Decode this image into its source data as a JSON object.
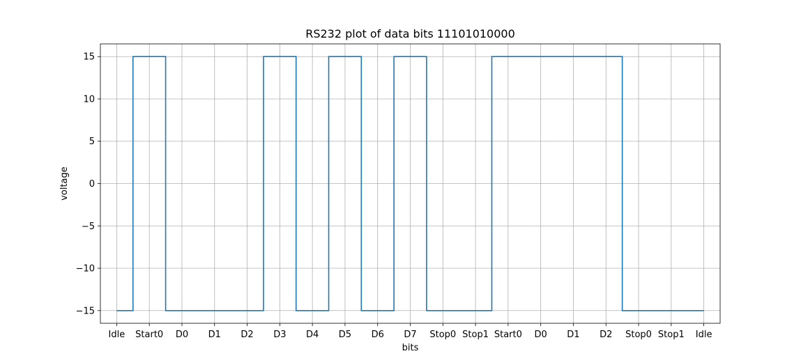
{
  "chart_data": {
    "type": "line",
    "title": "RS232 plot of data bits 11101010000",
    "xlabel": "bits",
    "ylabel": "voltage",
    "xlim": [
      -0.5,
      18.5
    ],
    "ylim": [
      -16.5,
      16.5
    ],
    "grid": true,
    "line_color": "#1f77b4",
    "step_where": "mid",
    "categories": [
      "Idle",
      "Start0",
      "D0",
      "D1",
      "D2",
      "D3",
      "D4",
      "D5",
      "D6",
      "D7",
      "Stop0",
      "Stop1",
      "Start0",
      "D0",
      "D1",
      "D2",
      "Stop0",
      "Stop1",
      "Idle"
    ],
    "yticks": [
      -15,
      -10,
      -5,
      0,
      5,
      10,
      15
    ],
    "ytick_labels": [
      "−15",
      "−10",
      "−5",
      "0",
      "5",
      "10",
      "15"
    ],
    "series": [
      {
        "values": [
          -15,
          15,
          -15,
          -15,
          -15,
          15,
          -15,
          15,
          -15,
          15,
          -15,
          -15,
          15,
          15,
          15,
          15,
          -15,
          -15,
          -15
        ]
      }
    ]
  }
}
